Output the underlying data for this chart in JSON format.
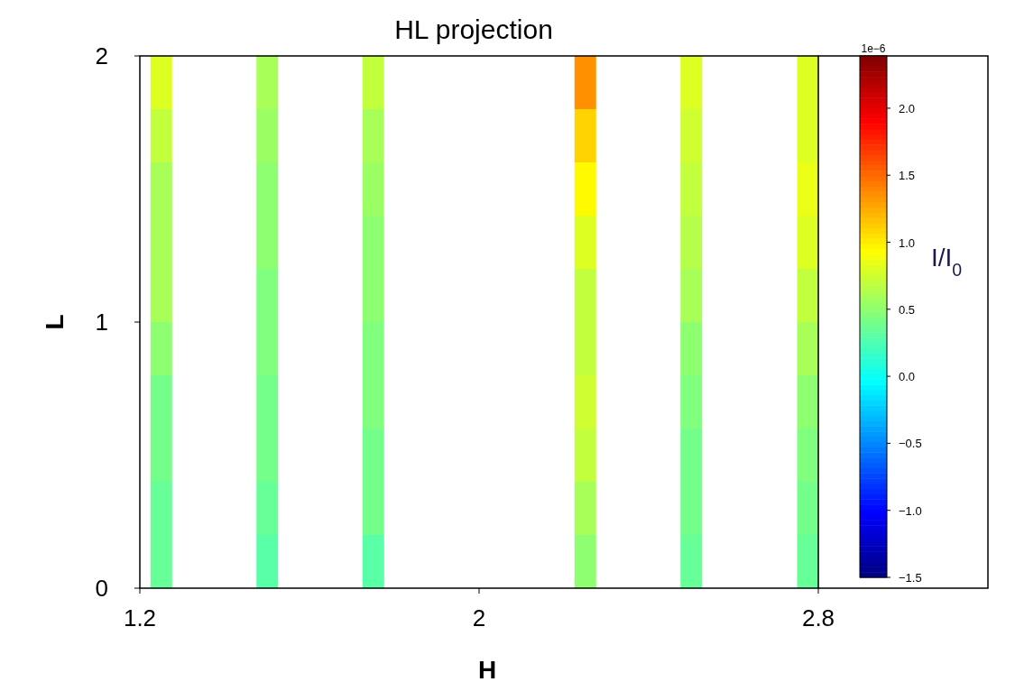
{
  "chart_data": {
    "type": "heatmap",
    "title": "HL projection",
    "xlabel": "H",
    "ylabel": "L",
    "clabel": "I/I$_{0}$",
    "annotations": [
      "1e−6"
    ],
    "cells": [
      [
        null,
        0.8,
        0.8,
        null,
        null,
        null,
        null,
        null,
        null,
        null,
        null,
        0.6,
        0.6,
        null,
        null,
        null,
        null,
        null,
        null,
        null,
        null,
        0.7,
        0.7,
        null,
        null,
        null,
        null,
        null,
        null,
        null,
        null,
        null,
        null,
        null,
        null,
        null,
        null,
        null,
        null,
        null,
        null,
        1.35,
        1.35,
        null,
        null,
        null,
        null,
        null,
        null,
        null,
        null,
        0.8,
        0.8,
        null,
        null,
        null,
        null,
        null,
        null,
        null,
        null,
        null,
        0.8,
        0.8
      ],
      [
        null,
        0.7,
        0.7,
        null,
        null,
        null,
        null,
        null,
        null,
        null,
        null,
        0.55,
        0.55,
        null,
        null,
        null,
        null,
        null,
        null,
        null,
        null,
        0.6,
        0.6,
        null,
        null,
        null,
        null,
        null,
        null,
        null,
        null,
        null,
        null,
        null,
        null,
        null,
        null,
        null,
        null,
        null,
        null,
        1.1,
        1.1,
        null,
        null,
        null,
        null,
        null,
        null,
        null,
        null,
        0.75,
        0.75,
        null,
        null,
        null,
        null,
        null,
        null,
        null,
        null,
        null,
        0.8,
        0.8
      ],
      [
        null,
        0.6,
        0.6,
        null,
        null,
        null,
        null,
        null,
        null,
        null,
        null,
        0.5,
        0.5,
        null,
        null,
        null,
        null,
        null,
        null,
        null,
        null,
        0.55,
        0.55,
        null,
        null,
        null,
        null,
        null,
        null,
        null,
        null,
        null,
        null,
        null,
        null,
        null,
        null,
        null,
        null,
        null,
        null,
        0.95,
        0.95,
        null,
        null,
        null,
        null,
        null,
        null,
        null,
        null,
        0.7,
        0.7,
        null,
        null,
        null,
        null,
        null,
        null,
        null,
        null,
        null,
        0.85,
        0.85
      ],
      [
        null,
        0.6,
        0.6,
        null,
        null,
        null,
        null,
        null,
        null,
        null,
        null,
        0.5,
        0.5,
        null,
        null,
        null,
        null,
        null,
        null,
        null,
        null,
        0.5,
        0.5,
        null,
        null,
        null,
        null,
        null,
        null,
        null,
        null,
        null,
        null,
        null,
        null,
        null,
        null,
        null,
        null,
        null,
        null,
        0.8,
        0.8,
        null,
        null,
        null,
        null,
        null,
        null,
        null,
        null,
        0.65,
        0.65,
        null,
        null,
        null,
        null,
        null,
        null,
        null,
        null,
        null,
        0.8,
        0.8
      ],
      [
        null,
        0.6,
        0.6,
        null,
        null,
        null,
        null,
        null,
        null,
        null,
        null,
        0.45,
        0.45,
        null,
        null,
        null,
        null,
        null,
        null,
        null,
        null,
        0.5,
        0.5,
        null,
        null,
        null,
        null,
        null,
        null,
        null,
        null,
        null,
        null,
        null,
        null,
        null,
        null,
        null,
        null,
        null,
        null,
        0.7,
        0.7,
        null,
        null,
        null,
        null,
        null,
        null,
        null,
        null,
        0.6,
        0.6,
        null,
        null,
        null,
        null,
        null,
        null,
        null,
        null,
        null,
        0.7,
        0.7
      ],
      [
        null,
        0.5,
        0.5,
        null,
        null,
        null,
        null,
        null,
        null,
        null,
        null,
        0.45,
        0.45,
        null,
        null,
        null,
        null,
        null,
        null,
        null,
        null,
        0.45,
        0.45,
        null,
        null,
        null,
        null,
        null,
        null,
        null,
        null,
        null,
        null,
        null,
        null,
        null,
        null,
        null,
        null,
        null,
        null,
        0.7,
        0.7,
        null,
        null,
        null,
        null,
        null,
        null,
        null,
        null,
        0.5,
        0.5,
        null,
        null,
        null,
        null,
        null,
        null,
        null,
        null,
        null,
        0.6,
        0.6
      ],
      [
        null,
        0.4,
        0.4,
        null,
        null,
        null,
        null,
        null,
        null,
        null,
        null,
        0.4,
        0.4,
        null,
        null,
        null,
        null,
        null,
        null,
        null,
        null,
        0.45,
        0.45,
        null,
        null,
        null,
        null,
        null,
        null,
        null,
        null,
        null,
        null,
        null,
        null,
        null,
        null,
        null,
        null,
        null,
        null,
        0.75,
        0.75,
        null,
        null,
        null,
        null,
        null,
        null,
        null,
        null,
        0.45,
        0.45,
        null,
        null,
        null,
        null,
        null,
        null,
        null,
        null,
        null,
        0.5,
        0.5
      ],
      [
        null,
        0.4,
        0.4,
        null,
        null,
        null,
        null,
        null,
        null,
        null,
        null,
        0.4,
        0.4,
        null,
        null,
        null,
        null,
        null,
        null,
        null,
        null,
        0.4,
        0.4,
        null,
        null,
        null,
        null,
        null,
        null,
        null,
        null,
        null,
        null,
        null,
        null,
        null,
        null,
        null,
        null,
        null,
        null,
        0.7,
        0.7,
        null,
        null,
        null,
        null,
        null,
        null,
        null,
        null,
        0.4,
        0.4,
        null,
        null,
        null,
        null,
        null,
        null,
        null,
        null,
        null,
        0.45,
        0.45
      ],
      [
        null,
        0.35,
        0.35,
        null,
        null,
        null,
        null,
        null,
        null,
        null,
        null,
        0.35,
        0.35,
        null,
        null,
        null,
        null,
        null,
        null,
        null,
        null,
        0.4,
        0.4,
        null,
        null,
        null,
        null,
        null,
        null,
        null,
        null,
        null,
        null,
        null,
        null,
        null,
        null,
        null,
        null,
        null,
        null,
        0.6,
        0.6,
        null,
        null,
        null,
        null,
        null,
        null,
        null,
        null,
        0.4,
        0.4,
        null,
        null,
        null,
        null,
        null,
        null,
        null,
        null,
        null,
        0.4,
        0.4
      ],
      [
        null,
        0.35,
        0.35,
        null,
        null,
        null,
        null,
        null,
        null,
        null,
        null,
        0.3,
        0.3,
        null,
        null,
        null,
        null,
        null,
        null,
        null,
        null,
        0.3,
        0.3,
        null,
        null,
        null,
        null,
        null,
        null,
        null,
        null,
        null,
        null,
        null,
        null,
        null,
        null,
        null,
        null,
        null,
        null,
        0.5,
        0.5,
        null,
        null,
        null,
        null,
        null,
        null,
        null,
        null,
        0.35,
        0.35,
        null,
        null,
        null,
        null,
        null,
        null,
        null,
        null,
        null,
        0.35,
        0.35
      ]
    ],
    "xlim": [
      1.2,
      2.8
    ],
    "xticks": [
      1.2,
      2,
      2.8
    ],
    "ylim": [
      0,
      2
    ],
    "yticks": [
      0,
      1,
      2
    ],
    "clim": [
      -1.5,
      2.39
    ],
    "cticks": [
      {
        "value": -1.5,
        "label": "−1.5"
      },
      {
        "value": -1,
        "label": "−1.0"
      },
      {
        "value": -0.5,
        "label": "−0.5"
      },
      {
        "value": 0,
        "label": "0.0"
      },
      {
        "value": 0.5,
        "label": "0.5"
      },
      {
        "value": 1,
        "label": "1.0"
      },
      {
        "value": 1.5,
        "label": "1.5"
      },
      {
        "value": 2,
        "label": "2.0"
      }
    ]
  }
}
